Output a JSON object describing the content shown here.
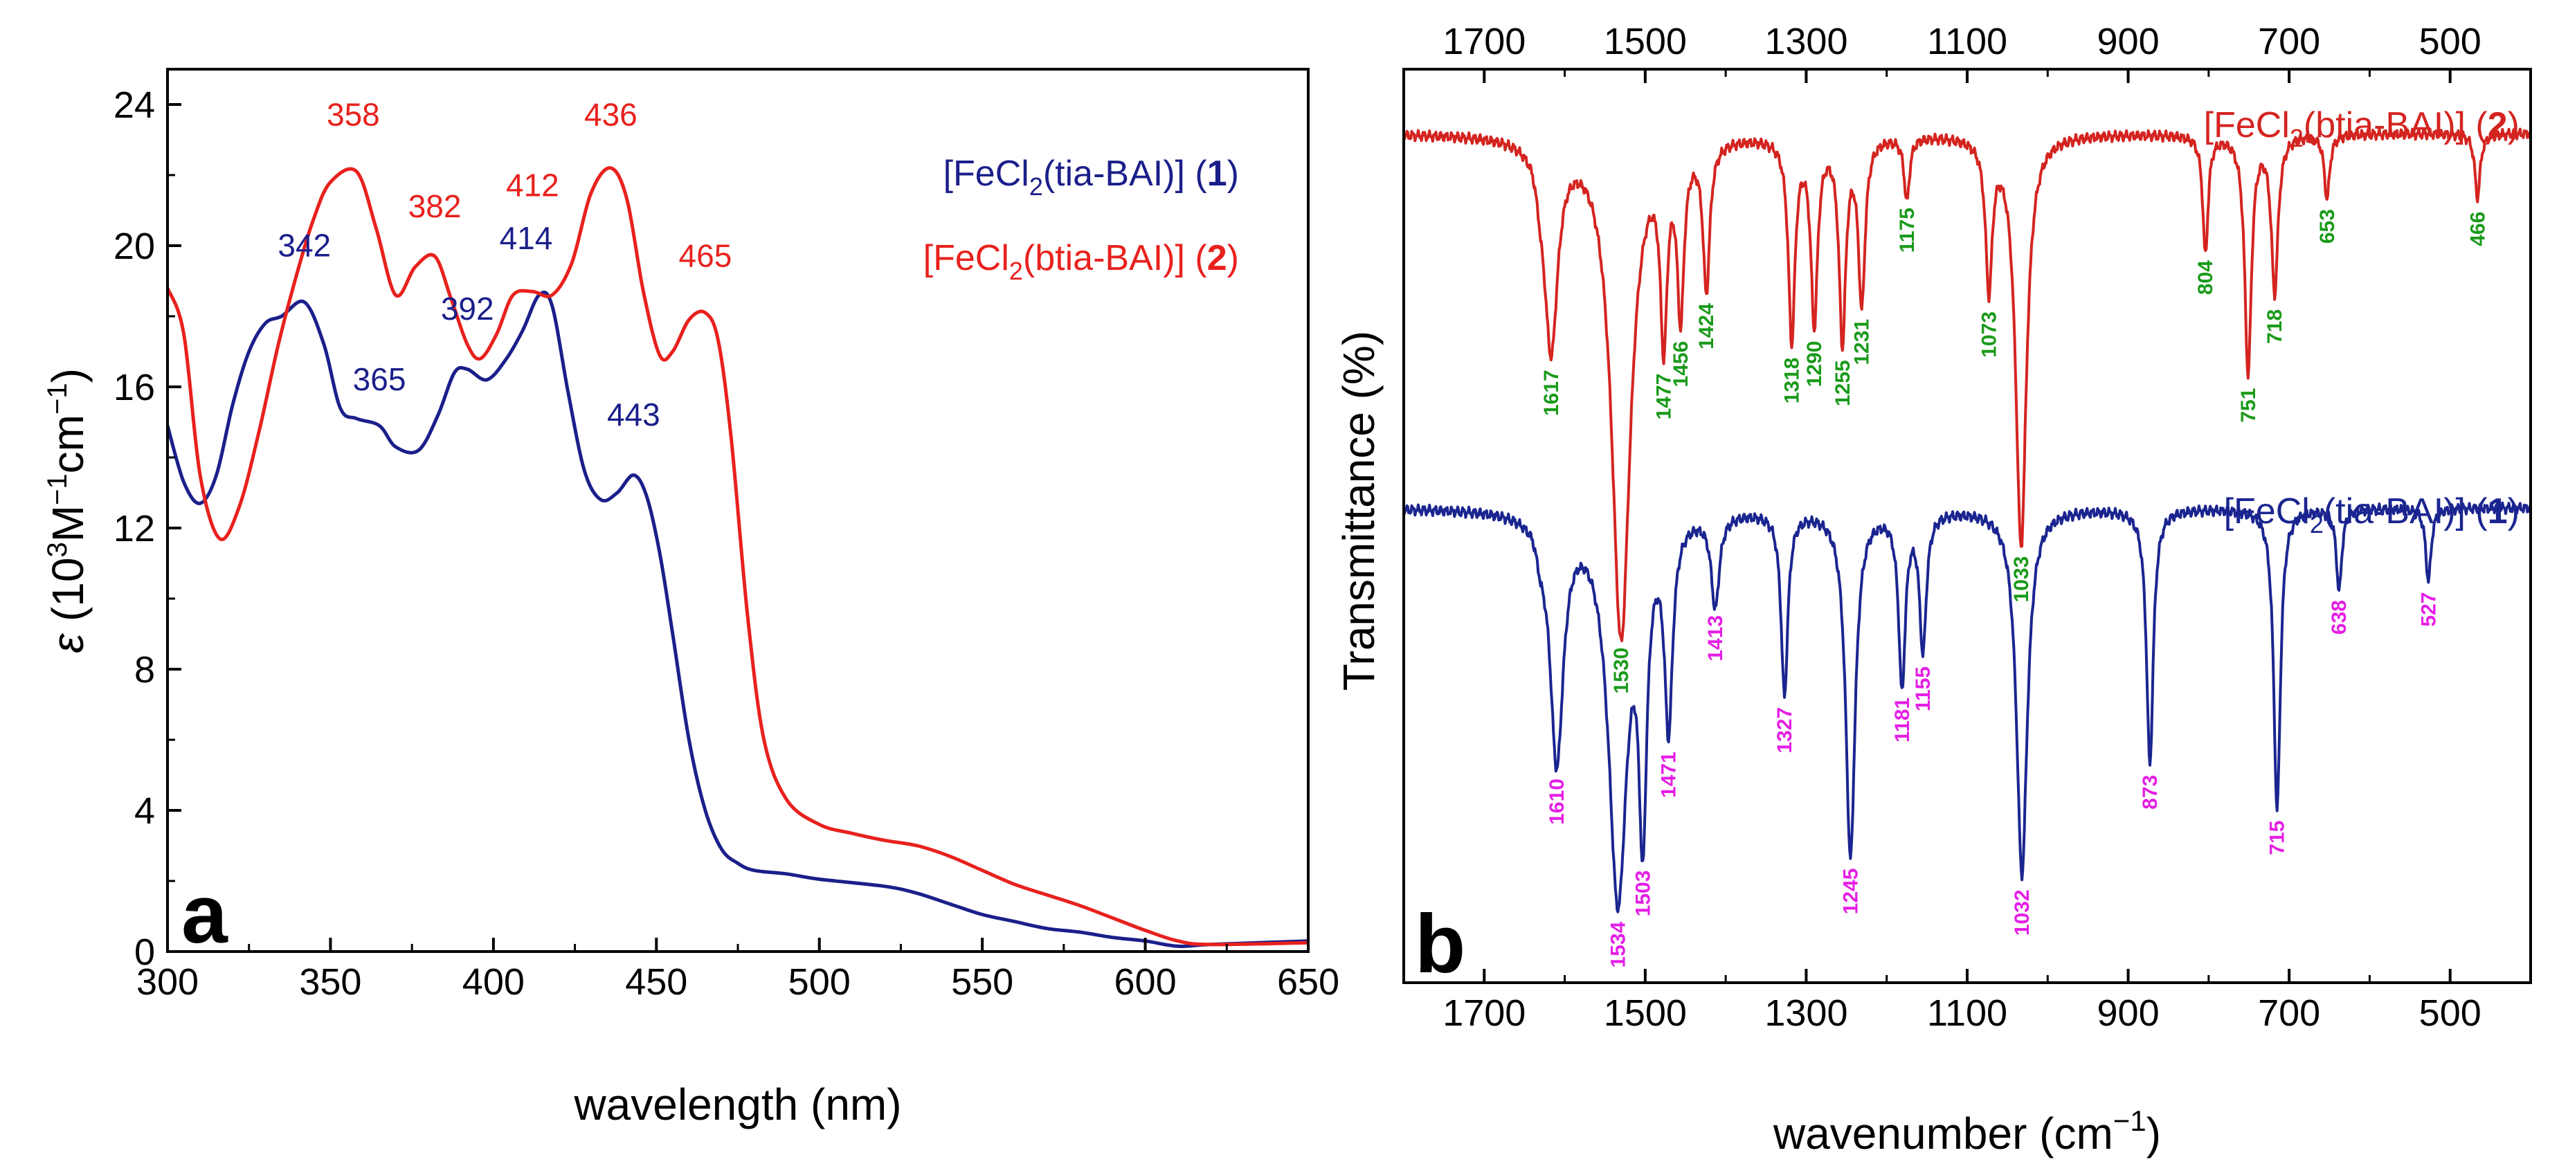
{
  "chart_data": [
    {
      "panel": "a",
      "type": "line",
      "xlabel": "wavelength (nm)",
      "ylabel": "ε (10³M⁻¹cm⁻¹)",
      "ylabel_parts": {
        "symbol": "ε",
        "open": " (10",
        "exp1": "3",
        "mid": "M",
        "exp2": "−1",
        "cm": "cm",
        "exp3": "−1",
        "close": ")"
      },
      "xlim": [
        300,
        650
      ],
      "ylim": [
        0,
        25
      ],
      "xticks": [
        300,
        350,
        400,
        450,
        500,
        550,
        600,
        650
      ],
      "yticks": [
        0,
        4,
        8,
        12,
        16,
        20,
        24
      ],
      "legend": [
        {
          "prefix": "[FeCl",
          "sub": "2",
          "mid": "(tia-BAI)] (",
          "num": "1",
          "suffix": ")",
          "color": "#1b1f8a"
        },
        {
          "prefix": "[FeCl",
          "sub": "2",
          "mid": "(btia-BAI)] (",
          "num": "2",
          "suffix": ")",
          "color": "#e8211d"
        }
      ],
      "series": [
        {
          "name": "[FeCl2(tia-BAI)] (1)",
          "color": "#1b1f8a",
          "x": [
            300,
            305,
            310,
            315,
            320,
            325,
            330,
            335,
            342,
            348,
            353,
            358,
            365,
            370,
            377,
            383,
            388,
            392,
            398,
            404,
            409,
            414,
            418,
            423,
            428,
            433,
            438,
            443,
            447,
            451,
            455,
            460,
            465,
            470,
            475,
            480,
            490,
            500,
            520,
            530,
            540,
            550,
            560,
            570,
            580,
            590,
            600,
            610,
            620,
            650
          ],
          "y": [
            14.9,
            13.3,
            12.7,
            13.5,
            15.5,
            17.0,
            17.8,
            18.0,
            18.4,
            17.2,
            15.4,
            15.1,
            14.9,
            14.3,
            14.2,
            15.2,
            16.4,
            16.5,
            16.2,
            16.8,
            17.6,
            18.6,
            18.3,
            15.8,
            13.6,
            12.8,
            13.0,
            13.5,
            12.9,
            11.3,
            9.0,
            6.0,
            4.0,
            2.9,
            2.5,
            2.3,
            2.2,
            2.05,
            1.85,
            1.65,
            1.35,
            1.05,
            0.85,
            0.65,
            0.55,
            0.4,
            0.3,
            0.15,
            0.2,
            0.3
          ]
        },
        {
          "name": "[FeCl2(btia-BAI)] (2)",
          "color": "#e8211d",
          "x": [
            300,
            305,
            310,
            316,
            322,
            328,
            334,
            340,
            345,
            350,
            358,
            364,
            370,
            376,
            382,
            387,
            392,
            396,
            401,
            406,
            412,
            418,
            424,
            430,
            436,
            441,
            446,
            451,
            455,
            460,
            465,
            469,
            473,
            478,
            483,
            490,
            500,
            510,
            520,
            530,
            540,
            550,
            560,
            570,
            580,
            590,
            600,
            610,
            620,
            650
          ],
          "y": [
            18.8,
            17.5,
            13.5,
            11.7,
            12.6,
            14.7,
            17.2,
            19.3,
            20.8,
            21.8,
            22.1,
            20.5,
            18.6,
            19.4,
            19.7,
            18.5,
            17.2,
            16.8,
            17.5,
            18.6,
            18.7,
            18.6,
            19.5,
            21.5,
            22.2,
            21.3,
            18.7,
            16.9,
            17.0,
            17.9,
            18.1,
            17.3,
            14.5,
            9.5,
            6.0,
            4.3,
            3.6,
            3.35,
            3.15,
            3.0,
            2.7,
            2.3,
            1.9,
            1.6,
            1.3,
            0.95,
            0.6,
            0.3,
            0.2,
            0.25
          ]
        }
      ],
      "annotations": [
        {
          "text": "342",
          "x": 342,
          "y": 19.7,
          "series": 0
        },
        {
          "text": "365",
          "x": 365,
          "y": 15.9,
          "series": 0
        },
        {
          "text": "392",
          "x": 392,
          "y": 17.9,
          "series": 0
        },
        {
          "text": "414",
          "x": 410,
          "y": 19.9,
          "series": 0
        },
        {
          "text": "443",
          "x": 443,
          "y": 14.9,
          "series": 0
        },
        {
          "text": "358",
          "x": 357,
          "y": 23.4,
          "series": 1
        },
        {
          "text": "382",
          "x": 382,
          "y": 20.8,
          "series": 1
        },
        {
          "text": "412",
          "x": 412,
          "y": 21.4,
          "series": 1
        },
        {
          "text": "436",
          "x": 436,
          "y": 23.4,
          "series": 1
        },
        {
          "text": "465",
          "x": 465,
          "y": 19.4,
          "series": 1
        }
      ],
      "panel_label": "a"
    },
    {
      "panel": "b",
      "type": "line",
      "xlabel": "wavenumber (cm⁻¹)",
      "xlabel_parts": {
        "main": "wavenumber (cm",
        "exp": "−1",
        "close": ")"
      },
      "ylabel": "Transmittance (%)",
      "xlim": [
        1800,
        400
      ],
      "x_reversed": true,
      "xticks": [
        1700,
        1500,
        1300,
        1100,
        900,
        700,
        500
      ],
      "ylim": [
        0,
        100
      ],
      "legend": [
        {
          "prefix": "[FeCl",
          "sub": "2",
          "mid": "(btia-BAI)] (",
          "num": "2",
          "suffix": ")",
          "color": "#d42420"
        },
        {
          "prefix": "[FeCl",
          "sub": "2",
          "mid": "(tia-BAI)] (",
          "num": "1",
          "suffix": ")",
          "color": "#1b2590"
        }
      ],
      "series": [
        {
          "name": "[FeCl2(btia-BAI)] (2)",
          "color": "#d42420",
          "baseline": 93,
          "peaks": [
            {
              "wn": 1617,
              "depth": 23,
              "w": 10,
              "label": "1617"
            },
            {
              "wn": 1530,
              "depth": 55,
              "w": 14,
              "label": "1530"
            },
            {
              "wn": 1477,
              "depth": 20,
              "w": 5,
              "label": "1477"
            },
            {
              "wn": 1456,
              "depth": 18,
              "w": 5,
              "label": "1456"
            },
            {
              "wn": 1424,
              "depth": 16,
              "w": 5,
              "label": "1424"
            },
            {
              "wn": 1318,
              "depth": 22,
              "w": 5,
              "label": "1318"
            },
            {
              "wn": 1290,
              "depth": 20,
              "w": 5,
              "label": "1290"
            },
            {
              "wn": 1255,
              "depth": 22,
              "w": 5,
              "label": "1255"
            },
            {
              "wn": 1231,
              "depth": 18,
              "w": 5,
              "label": "1231"
            },
            {
              "wn": 1175,
              "depth": 7,
              "w": 4,
              "label": "1175"
            },
            {
              "wn": 1073,
              "depth": 16,
              "w": 5,
              "label": "1073"
            },
            {
              "wn": 1033,
              "depth": 45,
              "w": 8,
              "label": "1033"
            },
            {
              "wn": 804,
              "depth": 13,
              "w": 4,
              "label": "804"
            },
            {
              "wn": 751,
              "depth": 26,
              "w": 5,
              "label": "751"
            },
            {
              "wn": 718,
              "depth": 17,
              "w": 5,
              "label": "718"
            },
            {
              "wn": 653,
              "depth": 7,
              "w": 4,
              "label": "653"
            },
            {
              "wn": 466,
              "depth": 7,
              "w": 4,
              "label": "466"
            }
          ]
        },
        {
          "name": "[FeCl2(tia-BAI)] (1)",
          "color": "#1b2590",
          "baseline": 52,
          "peaks": [
            {
              "wn": 1610,
              "depth": 27,
              "w": 10,
              "label": "1610"
            },
            {
              "wn": 1534,
              "depth": 42,
              "w": 14,
              "label": "1534"
            },
            {
              "wn": 1503,
              "depth": 31,
              "w": 6,
              "label": "1503"
            },
            {
              "wn": 1471,
              "depth": 22,
              "w": 6,
              "label": "1471"
            },
            {
              "wn": 1413,
              "depth": 10,
              "w": 6,
              "label": "1413"
            },
            {
              "wn": 1327,
              "depth": 20,
              "w": 5,
              "label": "1327"
            },
            {
              "wn": 1245,
              "depth": 38,
              "w": 7,
              "label": "1245"
            },
            {
              "wn": 1181,
              "depth": 19,
              "w": 5,
              "label": "1181"
            },
            {
              "wn": 1155,
              "depth": 15,
              "w": 5,
              "label": "1155"
            },
            {
              "wn": 1032,
              "depth": 40,
              "w": 8,
              "label": "1032"
            },
            {
              "wn": 873,
              "depth": 28,
              "w": 5,
              "label": "873"
            },
            {
              "wn": 715,
              "depth": 33,
              "w": 5,
              "label": "715"
            },
            {
              "wn": 638,
              "depth": 9,
              "w": 4,
              "label": "638"
            },
            {
              "wn": 527,
              "depth": 8,
              "w": 4,
              "label": "527"
            }
          ]
        }
      ],
      "peak_label_colors": [
        "#1a9a1a",
        "#e51ee5"
      ],
      "panel_label": "b"
    }
  ]
}
